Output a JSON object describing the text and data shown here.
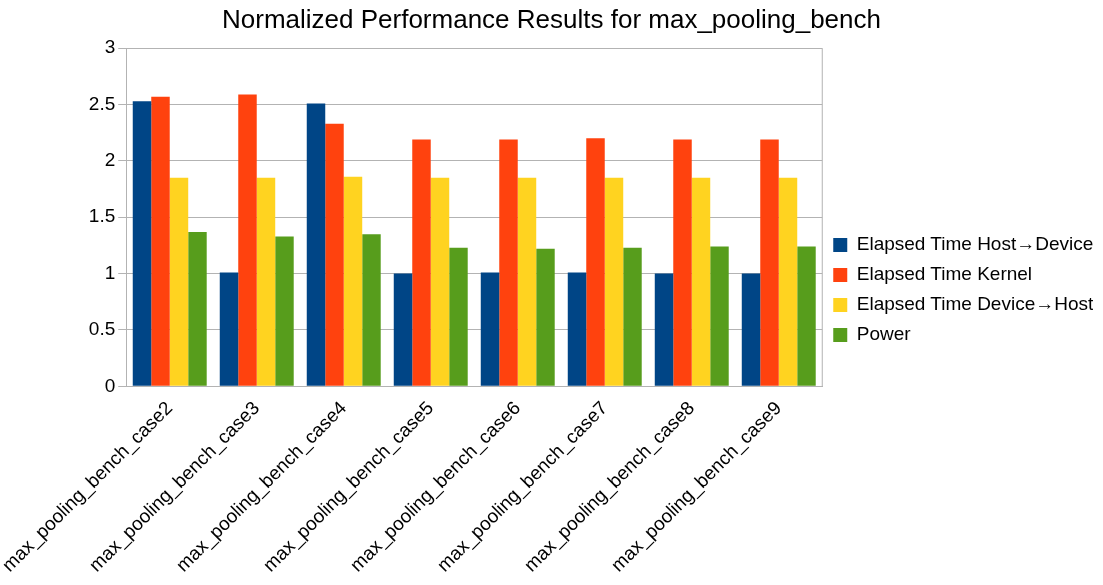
{
  "chart_data": {
    "type": "bar",
    "title": "Normalized Performance Results for max_pooling_bench",
    "categories": [
      "max_pooling_bench_case2",
      "max_pooling_bench_case3",
      "max_pooling_bench_case4",
      "max_pooling_bench_case5",
      "max_pooling_bench_case6",
      "max_pooling_bench_case7",
      "max_pooling_bench_case8",
      "max_pooling_bench_case9"
    ],
    "series": [
      {
        "name": "Elapsed Time Host→Device",
        "color": "#004586",
        "values": [
          2.53,
          1.01,
          2.51,
          1.0,
          1.01,
          1.01,
          1.0,
          1.0
        ]
      },
      {
        "name": "Elapsed Time Kernel",
        "color": "#ff420e",
        "values": [
          2.57,
          2.59,
          2.33,
          2.19,
          2.19,
          2.2,
          2.19,
          2.19
        ]
      },
      {
        "name": "Elapsed Time Device→Host",
        "color": "#ffd320",
        "values": [
          1.85,
          1.85,
          1.86,
          1.85,
          1.85,
          1.85,
          1.85,
          1.85
        ]
      },
      {
        "name": "Power",
        "color": "#579d1c",
        "values": [
          1.37,
          1.33,
          1.35,
          1.23,
          1.22,
          1.23,
          1.24,
          1.24
        ]
      }
    ],
    "ylim": [
      0,
      3
    ],
    "yticks": [
      0,
      0.5,
      1,
      1.5,
      2,
      2.5,
      3
    ],
    "grid": "y",
    "legend": "right"
  }
}
